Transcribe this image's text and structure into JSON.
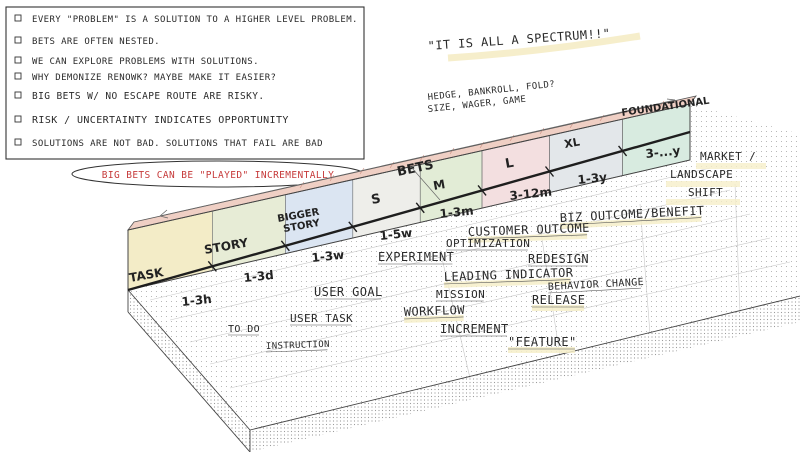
{
  "notes": {
    "items": [
      "EVERY \"PROBLEM\" IS A SOLUTION TO A HIGHER LEVEL PROBLEM.",
      "BETS ARE OFTEN NESTED.",
      "WE CAN EXPLORE PROBLEMS WITH SOLUTIONS.",
      "WHY DEMONIZE RENOWK? MAYBE MAKE IT EASIER?",
      "BIG BETS W/ NO ESCAPE ROUTE ARE RISKY.",
      "RISK / UNCERTAINTY INDICATES OPPORTUNITY",
      "SOLUTIONS ARE NOT BAD. SOLUTIONS THAT FAIL ARE BAD"
    ],
    "callout": "BIG BETS CAN BE \"PLAYED\" INCREMENTALLY"
  },
  "quote": "\"IT IS ALL A SPECTRUM!!\"",
  "hedge_note": [
    "HEDGE, BANKROLL, FOLD?",
    "SIZE, WAGER, GAME"
  ],
  "bets_label": "BETS",
  "segments": [
    {
      "label": "TASK",
      "duration": "1-3h",
      "color": "#f3ecc7"
    },
    {
      "label": "STORY",
      "duration": "1-3d",
      "color": "#e7ecd6"
    },
    {
      "label": "BIGGER STORY",
      "duration": "1-3w",
      "color": "#dbe5f2"
    },
    {
      "label": "S",
      "duration": "1-5w",
      "color": "#eeeeea"
    },
    {
      "label": "M",
      "duration": "1-3m",
      "color": "#e2ecd6"
    },
    {
      "label": "L",
      "duration": "3-12m",
      "color": "#f3dfe0"
    },
    {
      "label": "XL",
      "duration": "1-3y",
      "color": "#e3e7ea"
    },
    {
      "label": "FOUNDATIONAL",
      "duration": "3-...y",
      "color": "#d8ebe0"
    }
  ],
  "outcomes": [
    "MARKET / LANDSCAPE SHIFT",
    "BIZ OUTCOME/BENEFIT",
    "CUSTOMER OUTCOME",
    "OPTIMIZATION",
    "EXPERIMENT",
    "REDESIGN",
    "LEADING INDICATOR",
    "BEHAVIOR CHANGE",
    "USER GOAL",
    "MISSION",
    "RELEASE",
    "USER TASK",
    "WORKFLOW",
    "INCREMENT",
    "TO DO",
    "INSTRUCTION",
    "\"FEATURE\""
  ],
  "colors": {
    "ink": "#2a2a2a",
    "callout_red": "#c63a3a",
    "highlight": "#f6efc9",
    "top_edge": "#e8b6a8"
  }
}
